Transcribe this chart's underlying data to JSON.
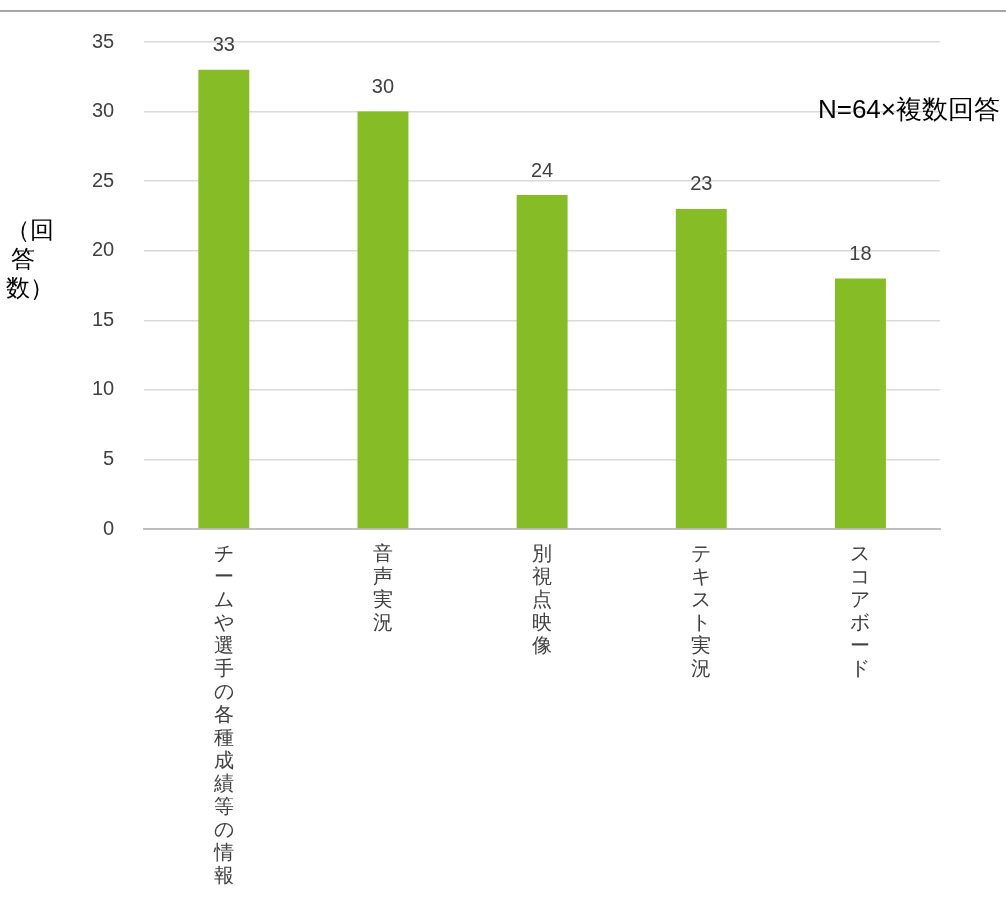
{
  "chart_data": {
    "type": "bar",
    "ylabel": "（回答数）",
    "categories": [
      "チームや選手の各種成績等の情報",
      "音声実況",
      "別視点映像",
      "テキスト実況",
      "スコアボード"
    ],
    "values": [
      33,
      30,
      24,
      23,
      18
    ],
    "color": "#86bc25",
    "ylim": [
      0,
      35
    ],
    "yticks": [
      0,
      5,
      10,
      15,
      20,
      25,
      30,
      35
    ],
    "grid": "y",
    "data_labels": true,
    "annotations": [
      "N=64×複数回答"
    ]
  }
}
